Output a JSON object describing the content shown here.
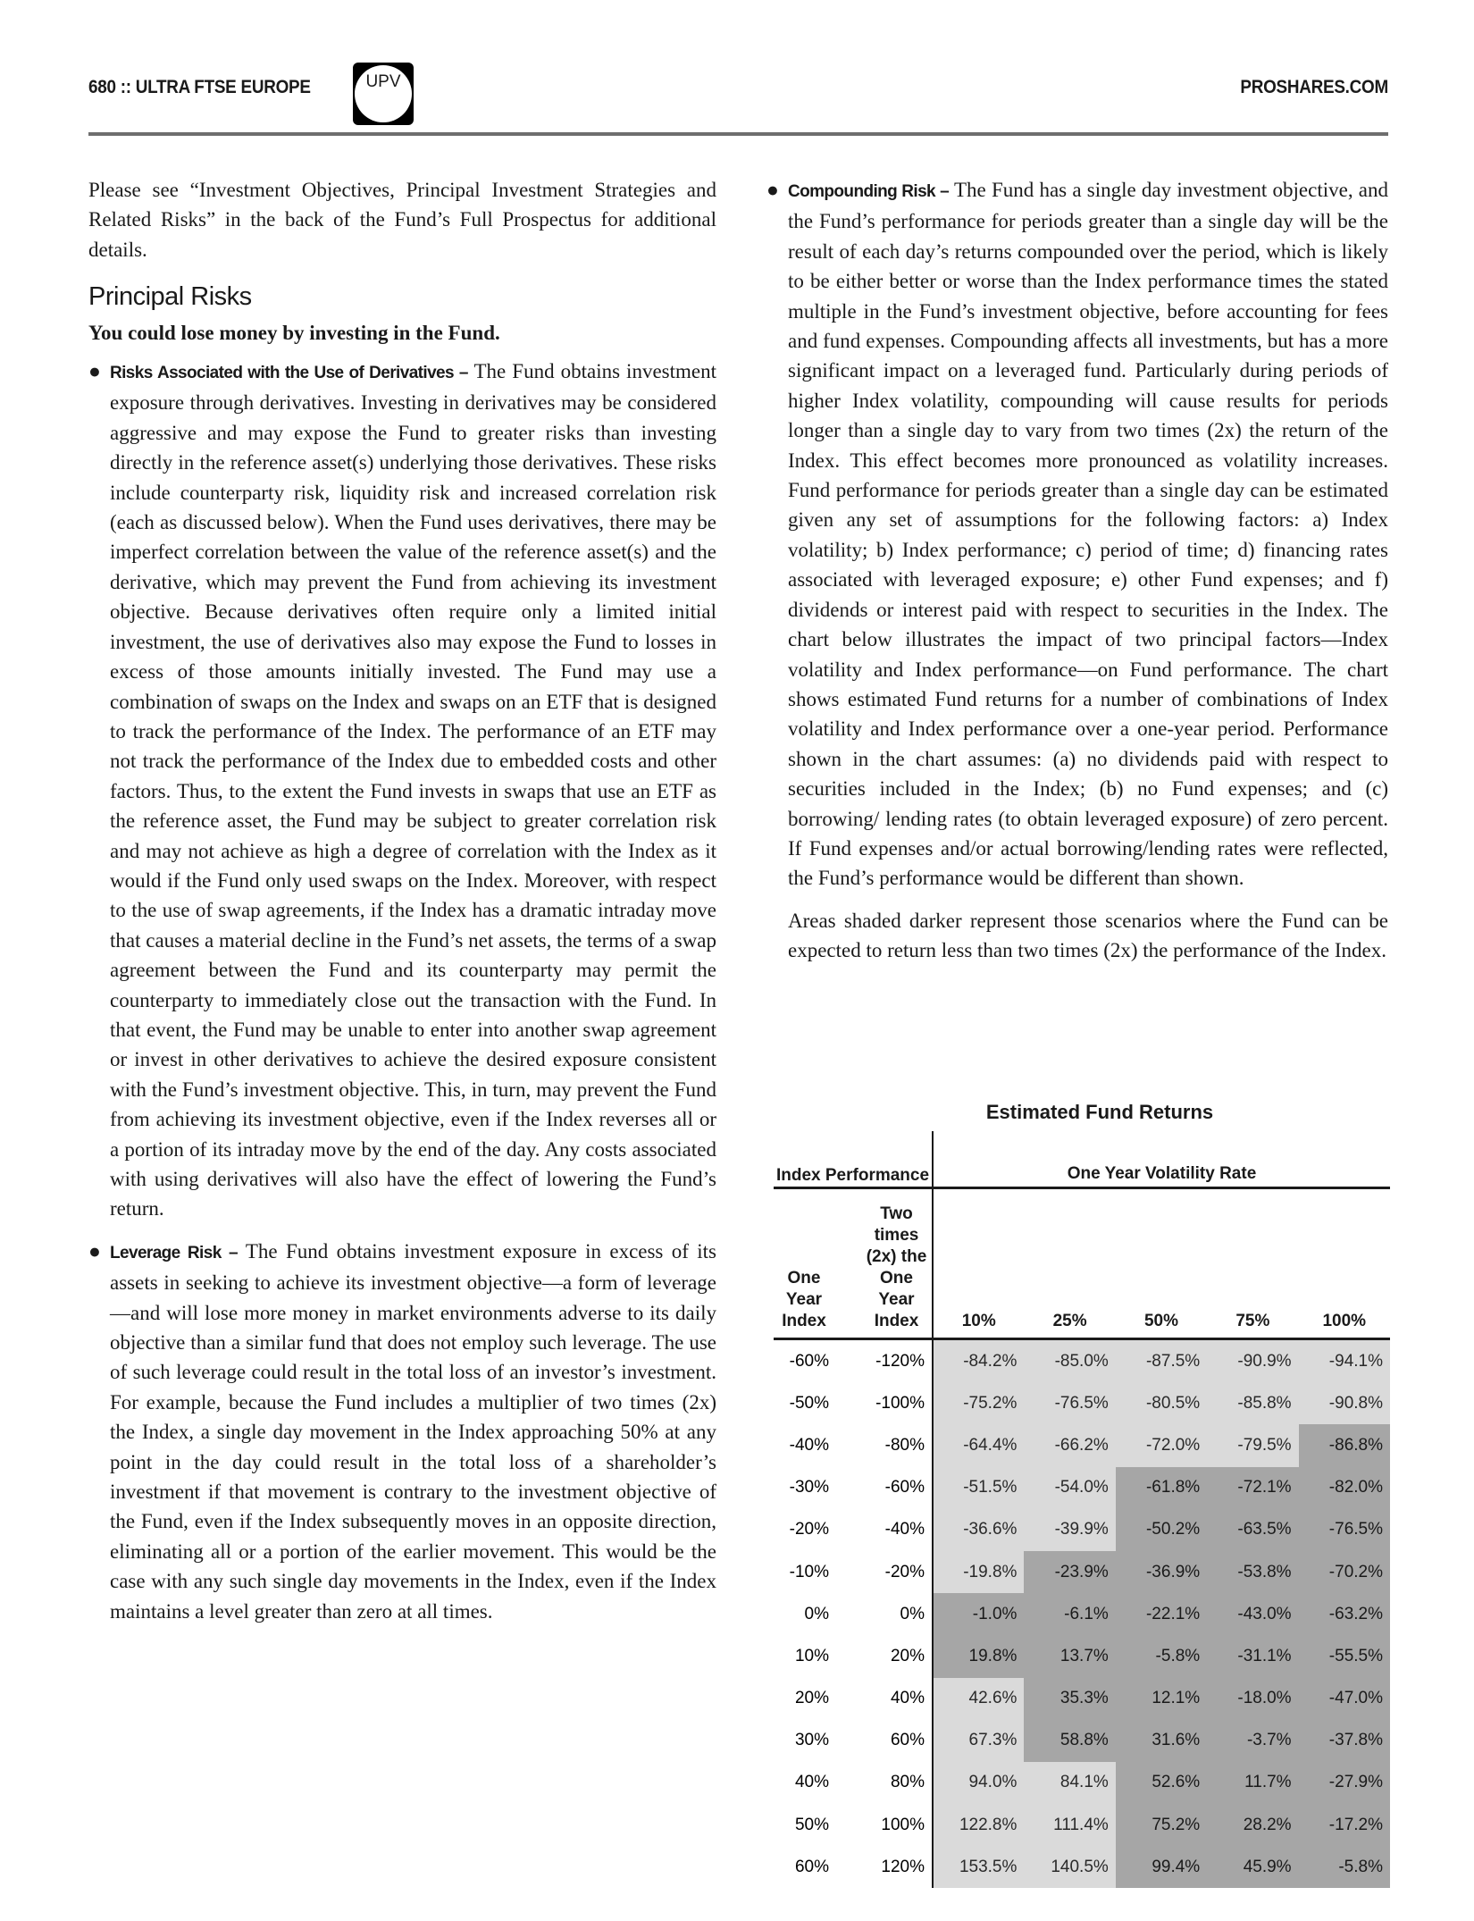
{
  "header": {
    "left": "680 :: ULTRA FTSE EUROPE",
    "badge": "UPV",
    "right": "PROSHARES.COM"
  },
  "intro": "Please see “Investment Objectives, Principal Investment Strategies and Related Risks” in the back of the Fund’s Full Prospectus for additional details.",
  "heading": "Principal Risks",
  "subheading": "You could lose money by investing in the Fund.",
  "bullets": [
    {
      "title": "Risks Associated with the Use of Derivatives –",
      "text": " The Fund obtains investment exposure through derivatives. Investing in derivatives may be considered aggressive and may expose the Fund to greater risks than investing directly in the reference asset(s) underlying those derivatives. These risks include counterparty risk, liquidity risk and increased correlation risk (each as discussed below). When the Fund uses derivatives, there may be imperfect correlation between the value of the reference asset(s) and the derivative, which may prevent the Fund from achieving its investment objective. Because derivatives often require only a limited initial investment, the use of derivatives also may expose the Fund to losses in excess of those amounts initially invested. The Fund may use a combination of swaps on the Index and swaps on an ETF that is designed to track the performance of the Index. The performance of an ETF may not track the performance of the Index due to embedded costs and other factors. Thus, to the extent the Fund invests in swaps that use an ETF as the reference asset, the Fund may be subject to greater correlation risk and may not achieve as high a degree of correlation with the Index as it would if the Fund only used swaps on the Index. Moreover, with respect to the use of swap agreements, if the Index has a dramatic intraday move that causes a material decline in the Fund’s net assets, the terms of a swap agreement between the Fund and its counterparty may permit the counterparty to immediately close out the transaction with the Fund. In that event, the Fund may be unable to enter into another swap agreement or invest in other derivatives to achieve the desired exposure consistent with the Fund’s investment objective. This, in turn, may prevent the Fund from achieving its investment objective, even if the Index reverses all or a portion of its intraday move by the end of the day. Any costs associated with using derivatives will also have the effect of lowering the Fund’s return."
    },
    {
      "title": "Leverage Risk –",
      "text": " The Fund obtains investment exposure in excess of its assets in seeking to achieve its investment objective—a form of leverage—and will lose more money in market environments adverse to its daily objective than a similar fund that does not employ such leverage. The use of such leverage could result in the total loss of an investor’s investment. For example, because the Fund includes a multiplier of two times (2x) the Index, a single day movement in the Index approaching 50% at any point in the day could result in the total loss of a shareholder’s investment if that movement is contrary to the investment objective of the Fund, even if the Index subsequently moves in an opposite direction, eliminating all or a portion of the earlier movement. This would be the case with any such single day movements in the Index, even if the Index maintains a level greater than zero at all times."
    },
    {
      "title": "Compounding Risk –",
      "text": " The Fund has a single day investment objective, and the Fund’s performance for periods greater than a single day will be the result of each day’s returns compounded over the period, which is likely to be either better or worse than the Index performance times the stated multiple in the Fund’s investment objective, before accounting for fees and fund expenses. Compounding affects all investments, but has a more significant impact on a leveraged fund. Particularly during periods of higher Index volatility, compounding will cause results for periods longer than a single day to vary from two times (2x) the return of the Index. This effect becomes more pronounced as volatility increases. Fund performance for periods greater than a single day can be estimated given any set of assumptions for the following factors: a) Index volatility; b) Index performance; c) period of time; d) financing rates associated with leveraged exposure; e) other Fund expenses; and f) dividends or interest paid with respect to securities in the Index. The chart below illustrates the impact of two principal factors—Index volatility and Index performance—on Fund performance. The chart shows estimated Fund returns for a number of combinations of Index volatility and Index performance over a one-year period. Performance shown in the chart assumes: (a) no dividends paid with respect to securities included in the Index; (b) no Fund expenses; and (c) borrowing/ lending rates (to obtain leveraged exposure) of zero percent. If Fund expenses and/or actual borrowing/lending rates were reflected, the Fund’s performance would be different than shown."
    }
  ],
  "shading_note": "Areas shaded darker represent those scenarios where the Fund can be expected to return less than two times (2x) the performance of the Index.",
  "table": {
    "title": "Estimated Fund Returns",
    "group_left": "Index Performance",
    "group_right": "One Year Volatility Rate",
    "col_index": "One Year Index",
    "col_2x": "Two times (2x) the One Year Index",
    "volatility": [
      "10%",
      "25%",
      "50%",
      "75%",
      "100%"
    ],
    "shade_colors": {
      "light": "#dadada",
      "dark": "#a6a6a6"
    },
    "rows": [
      {
        "index": "-60%",
        "two_x": "-120%",
        "values": [
          "-84.2%",
          "-85.0%",
          "-87.5%",
          "-90.9%",
          "-94.1%"
        ]
      },
      {
        "index": "-50%",
        "two_x": "-100%",
        "values": [
          "-75.2%",
          "-76.5%",
          "-80.5%",
          "-85.8%",
          "-90.8%"
        ]
      },
      {
        "index": "-40%",
        "two_x": "-80%",
        "values": [
          "-64.4%",
          "-66.2%",
          "-72.0%",
          "-79.5%",
          "-86.8%"
        ]
      },
      {
        "index": "-30%",
        "two_x": "-60%",
        "values": [
          "-51.5%",
          "-54.0%",
          "-61.8%",
          "-72.1%",
          "-82.0%"
        ]
      },
      {
        "index": "-20%",
        "two_x": "-40%",
        "values": [
          "-36.6%",
          "-39.9%",
          "-50.2%",
          "-63.5%",
          "-76.5%"
        ]
      },
      {
        "index": "-10%",
        "two_x": "-20%",
        "values": [
          "-19.8%",
          "-23.9%",
          "-36.9%",
          "-53.8%",
          "-70.2%"
        ]
      },
      {
        "index": "0%",
        "two_x": "0%",
        "values": [
          "-1.0%",
          "-6.1%",
          "-22.1%",
          "-43.0%",
          "-63.2%"
        ]
      },
      {
        "index": "10%",
        "two_x": "20%",
        "values": [
          "19.8%",
          "13.7%",
          "-5.8%",
          "-31.1%",
          "-55.5%"
        ]
      },
      {
        "index": "20%",
        "two_x": "40%",
        "values": [
          "42.6%",
          "35.3%",
          "12.1%",
          "-18.0%",
          "-47.0%"
        ]
      },
      {
        "index": "30%",
        "two_x": "60%",
        "values": [
          "67.3%",
          "58.8%",
          "31.6%",
          "-3.7%",
          "-37.8%"
        ]
      },
      {
        "index": "40%",
        "two_x": "80%",
        "values": [
          "94.0%",
          "84.1%",
          "52.6%",
          "11.7%",
          "-27.9%"
        ]
      },
      {
        "index": "50%",
        "two_x": "100%",
        "values": [
          "122.8%",
          "111.4%",
          "75.2%",
          "28.2%",
          "-17.2%"
        ]
      },
      {
        "index": "60%",
        "two_x": "120%",
        "values": [
          "153.5%",
          "140.5%",
          "99.4%",
          "45.9%",
          "-5.8%"
        ]
      }
    ]
  }
}
